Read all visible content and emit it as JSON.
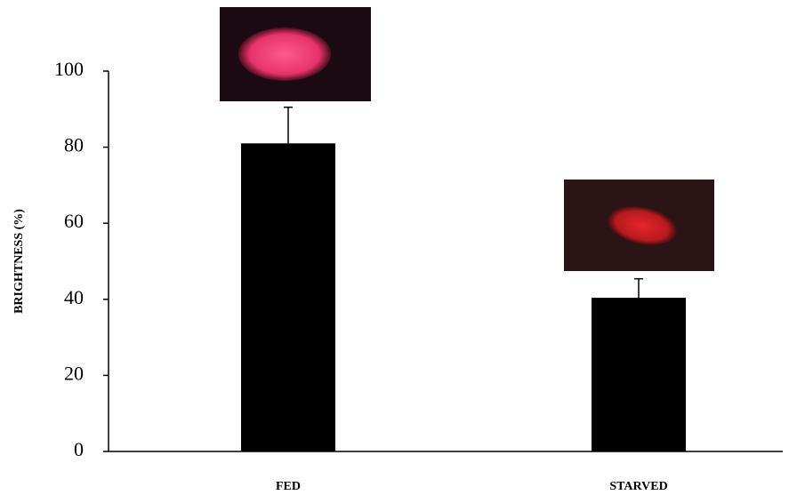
{
  "chart_data": {
    "type": "bar",
    "ylabel": "BRIGHTNESS (%)",
    "categories": [
      "FED",
      "STARVED"
    ],
    "values": [
      81,
      40.4
    ],
    "errors": [
      9.5,
      5
    ],
    "color": "#000000",
    "ylim": [
      0,
      100
    ],
    "yticks": [
      0,
      20,
      40,
      60,
      80,
      100
    ]
  }
}
